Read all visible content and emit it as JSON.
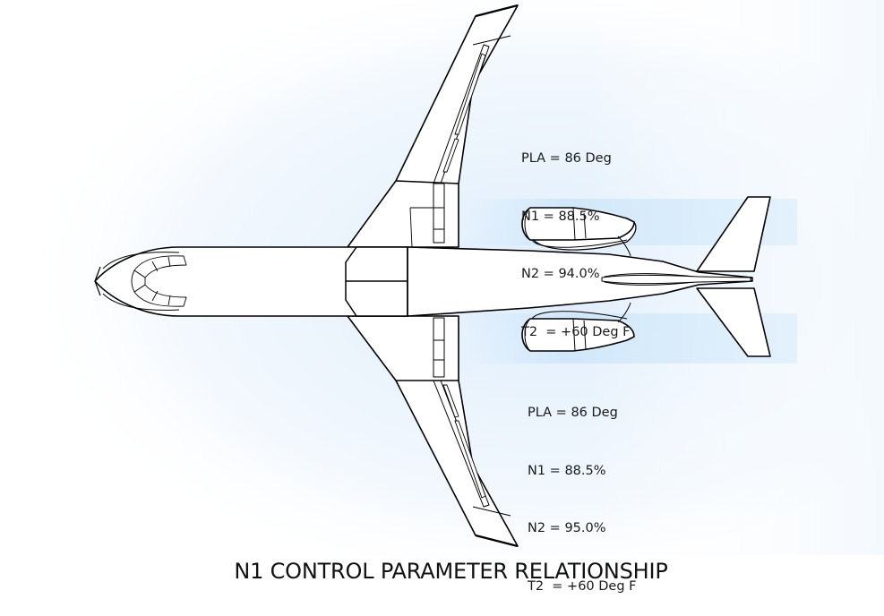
{
  "title": "N1 CONTROL PARAMETER RELATIONSHIP",
  "engines": [
    {
      "pla": "PLA = 86 Deg",
      "n1": "N1 = 88.5%",
      "n2": "N2 = 94.0%",
      "t2": "T2  = +60 Deg F"
    },
    {
      "pla": "PLA = 86 Deg",
      "n1": "N1 = 88.5%",
      "n2": "N2 = 95.0%",
      "t2": "T2  = +60 Deg F"
    }
  ],
  "colors": {
    "line": "#000000",
    "glow": "#dcecfb",
    "exhaust": "#cfe7fa",
    "text": "#1a1a1a"
  }
}
